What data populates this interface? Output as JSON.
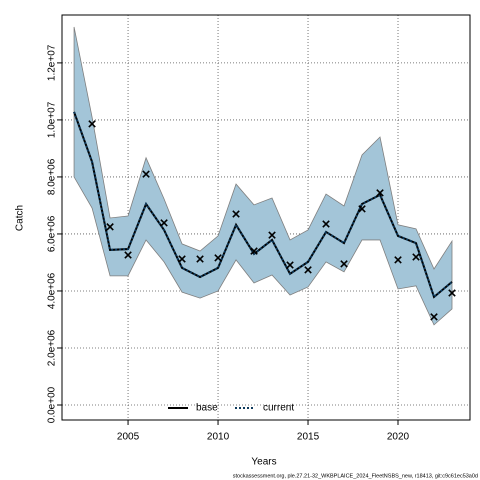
{
  "chart_data": {
    "type": "line",
    "x_label": "Years",
    "y_label": "Catch",
    "footer": "stockassessment.org, ple.27.21-32_WKBPLAICE_2024_FleetNSBS_new, r18413, git:c9c61ec53a0d",
    "x": [
      2002,
      2003,
      2004,
      2005,
      2006,
      2007,
      2008,
      2009,
      2010,
      2011,
      2012,
      2013,
      2014,
      2015,
      2016,
      2017,
      2018,
      2019,
      2020,
      2021,
      2022,
      2023
    ],
    "series": [
      {
        "name": "base",
        "color": "#000000",
        "dash": "solid",
        "values": [
          10280000,
          8530000,
          5440000,
          5470000,
          7050000,
          6140000,
          4810000,
          4490000,
          4810000,
          6320000,
          5300000,
          5790000,
          4600000,
          5020000,
          6070000,
          5680000,
          7050000,
          7370000,
          5930000,
          5680000,
          3790000,
          4320000
        ]
      },
      {
        "name": "current",
        "color": "#0e3a5c",
        "dash": "dotted",
        "values": [
          10280000,
          8530000,
          5440000,
          5470000,
          7050000,
          6140000,
          4810000,
          4490000,
          4810000,
          6320000,
          5300000,
          5790000,
          4600000,
          5020000,
          6070000,
          5680000,
          7050000,
          7370000,
          5930000,
          5680000,
          3790000,
          4320000
        ]
      }
    ],
    "interval": {
      "color": "#a3c5d8",
      "upper": [
        13260000,
        10100000,
        6560000,
        6630000,
        8670000,
        7230000,
        5650000,
        5400000,
        5930000,
        7750000,
        7020000,
        7260000,
        5790000,
        6140000,
        7400000,
        6980000,
        8770000,
        9400000,
        6320000,
        6180000,
        4770000,
        5750000
      ],
      "lower": [
        8000000,
        6910000,
        4530000,
        4530000,
        5790000,
        5020000,
        3960000,
        3750000,
        4000000,
        5090000,
        4280000,
        4560000,
        3860000,
        4140000,
        5020000,
        4670000,
        5790000,
        5790000,
        4070000,
        4180000,
        2810000,
        3370000
      ]
    },
    "points": {
      "marker": "x",
      "color": "#000000",
      "values": [
        null,
        9860000,
        6250000,
        5260000,
        8100000,
        6390000,
        5120000,
        5120000,
        5160000,
        6700000,
        5400000,
        5960000,
        4910000,
        4740000,
        6350000,
        4950000,
        6880000,
        7440000,
        5090000,
        5190000,
        3090000,
        3930000
      ]
    },
    "xlim": [
      2001.33,
      2024
    ],
    "xticks": [
      2005,
      2010,
      2015,
      2020
    ],
    "ylim": [
      -526000,
      13680000
    ],
    "yticks": [
      {
        "value": 0,
        "label": "0.0e+00"
      },
      {
        "value": 2000000,
        "label": "2.0e+06"
      },
      {
        "value": 4000000,
        "label": "4.0e+06"
      },
      {
        "value": 6000000,
        "label": "6.0e+06"
      },
      {
        "value": 8000000,
        "label": "8.0e+06"
      },
      {
        "value": 10000000,
        "label": "1.0e+07"
      },
      {
        "value": 12000000,
        "label": "1.2e+07"
      }
    ],
    "grid": true,
    "legend": "bottom"
  }
}
